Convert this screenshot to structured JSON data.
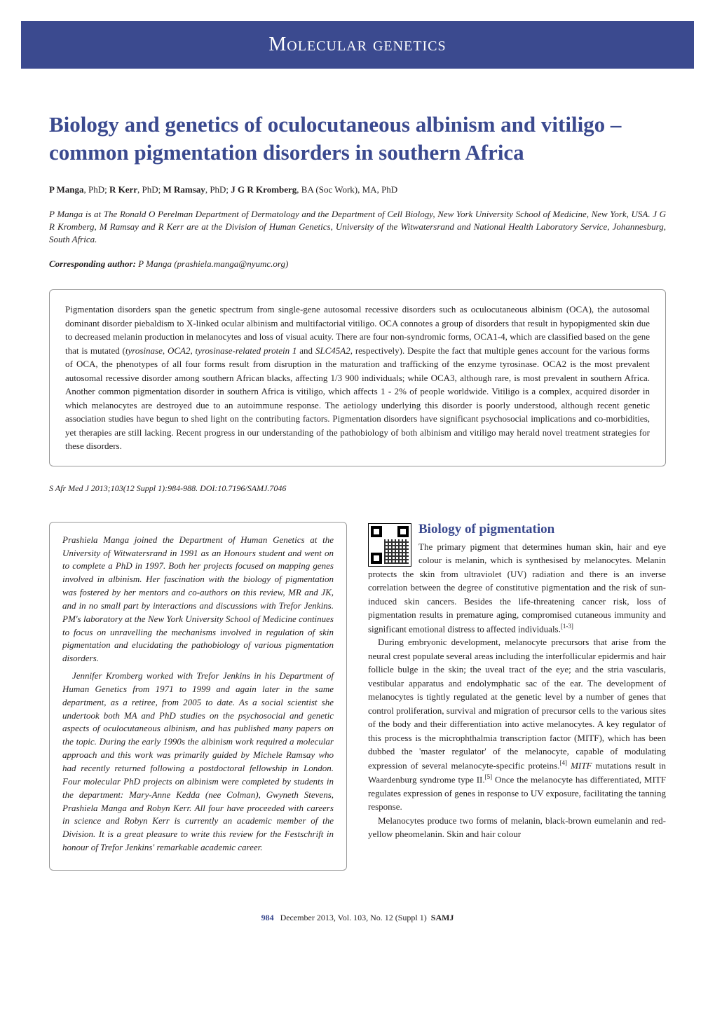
{
  "banner": {
    "text": "Molecular genetics"
  },
  "title": "Biology and genetics of oculocutaneous albinism and vitiligo – common pigmentation disorders in southern Africa",
  "authors_html": "<b>P Manga</b>, PhD; <b>R Kerr</b>, PhD; <b>M Ramsay</b>, PhD; <b>J G R Kromberg</b>, BA (Soc Work), MA, PhD",
  "affiliations": "P Manga is at The Ronald O Perelman Department of Dermatology and the Department of Cell Biology, New York University School of Medicine, New York, USA. J G R Kromberg, M Ramsay and R Kerr are at the Division of Human Genetics, University of the Witwatersrand and National Health Laboratory Service, Johannesburg, South Africa.",
  "corresponding_label": "Corresponding author:",
  "corresponding_value": " P Manga (prashiela.manga@nyumc.org)",
  "abstract": "Pigmentation disorders span the genetic spectrum from single-gene autosomal recessive disorders such as oculocutaneous albinism (OCA), the autosomal dominant disorder piebaldism to X-linked ocular albinism and multifactorial vitiligo. OCA connotes a group of disorders that result in hypopigmented skin due to decreased melanin production in melanocytes and loss of visual acuity. There are four non-syndromic forms, OCA1-4, which are classified based on the gene that is mutated (<i>tyrosinase</i>, <i>OCA2</i>, <i>tyrosinase-related protein 1</i> and <i>SLC45A2</i>, respectively). Despite the fact that multiple genes account for the various forms of OCA, the phenotypes of all four forms result from disruption in the maturation and trafficking of the enzyme tyrosinase. OCA2 is the most prevalent autosomal recessive disorder among southern African blacks, affecting 1/3 900 individuals; while OCA3, although rare, is most prevalent in southern Africa. Another common pigmentation disorder in southern Africa is vitiligo, which affects 1 - 2% of people worldwide. Vitiligo is a complex, acquired disorder in which melanocytes are destroyed due to an autoimmune response. The aetiology underlying this disorder is poorly understood, although recent genetic association studies have begun to shed light on the contributing factors. Pigmentation disorders have significant psychosocial implications and co-morbidities, yet therapies are still lacking. Recent progress in our understanding of the pathobiology of both albinism and vitiligo may herald novel treatment strategies for these disorders.",
  "citation": "S Afr Med J 2013;103(12 Suppl 1):984-988. DOI:10.7196/SAMJ.7046",
  "bio": {
    "p1": "Prashiela Manga joined the Department of Human Genetics at the University of Witwatersrand in 1991 as an Honours student and went on to complete a PhD in 1997. Both her projects focused on mapping genes involved in albinism. Her fascination with the biology of pigmentation was fostered by her mentors and co-authors on this review, MR and JK, and in no small part by interactions and discussions with Trefor Jenkins. PM's laboratory at the New York University School of Medicine continues to focus on unravelling the mechanisms involved in regulation of skin pigmentation and elucidating the pathobiology of various pigmentation disorders.",
    "p2": "Jennifer Kromberg worked with Trefor Jenkins in his Department of Human Genetics from 1971 to 1999 and again later in the same department, as a retiree, from 2005 to date. As a social scientist she undertook both MA and PhD studies on the psychosocial and genetic aspects of oculocutaneous albinism, and has published many papers on the topic. During the early 1990s the albinism work required a molecular approach and this work was primarily guided by Michele Ramsay who had recently returned following a postdoctoral fellowship in London. Four molecular PhD projects on albinism were completed by students in the department: Mary-Anne Kedda (nee Colman), Gwyneth Stevens, Prashiela Manga and Robyn Kerr. All four have proceeded with careers in science and Robyn Kerr is currently an academic member of the Division. It is a great pleasure to write this review for the Festschrift in honour of Trefor Jenkins' remarkable academic career."
  },
  "section1": {
    "heading": "Biology of pigmentation",
    "p1": "The primary pigment that determines human skin, hair and eye colour is melanin, which is synthesised by melanocytes. Melanin protects the skin from ultraviolet (UV) radiation and there is an inverse correlation between the degree of constitutive pigmentation and the risk of sun-induced skin cancers. Besides the life-threatening cancer risk, loss of pigmentation results in premature aging, compromised cutaneous immunity and significant emotional distress to affected individuals.",
    "p1_ref": "[1-3]",
    "p2": "During embryonic development, melanocyte precursors that arise from the neural crest populate several areas including the interfollicular epidermis and hair follicle bulge in the skin; the uveal tract of the eye; and the stria vascularis, vestibular apparatus and endolymphatic sac of the ear. The development of melanocytes is tightly regulated at the genetic level by a number of genes that control proliferation, survival and migration of precursor cells to the various sites of the body and their differentiation into active melanocytes. A key regulator of this process is the microphthalmia transcription factor (MITF), which has been dubbed the 'master regulator' of the melanocyte, capable of modulating expression of several melanocyte-specific proteins.",
    "p2_ref1": "[4]",
    "p2_cont": " <i>MITF</i> mutations result in Waardenburg syndrome type II.",
    "p2_ref2": "[5]",
    "p2_cont2": " Once the melanocyte has differentiated, MITF regulates expression of genes in response to UV exposure, facilitating the tanning response.",
    "p3": "Melanocytes produce two forms of melanin, black-brown eumelanin and red-yellow pheomelanin. Skin and hair colour"
  },
  "footer": {
    "pagenum": "984",
    "text": "December 2013, Vol. 103, No. 12 (Suppl 1)",
    "journal": "SAMJ"
  },
  "colors": {
    "primary": "#3b4a8f",
    "text": "#231f20",
    "border": "#999999",
    "background": "#ffffff"
  }
}
